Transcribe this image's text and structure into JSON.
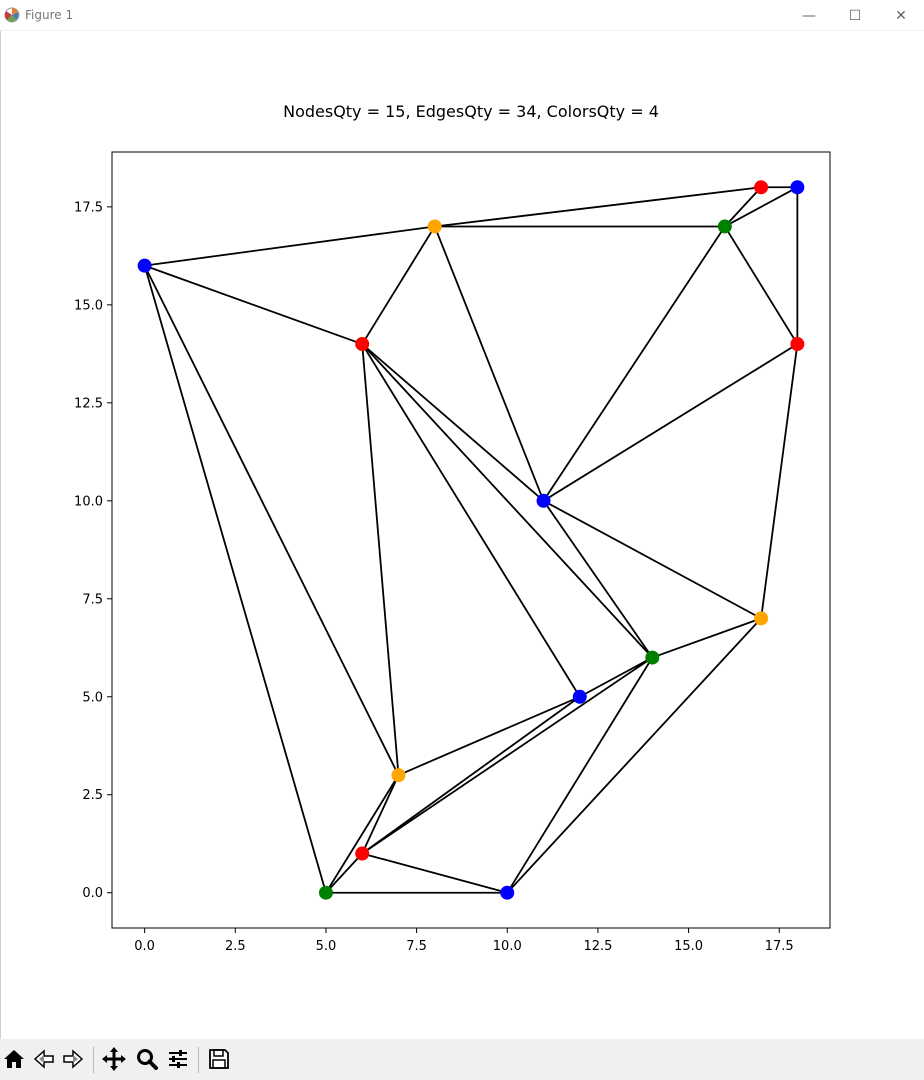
{
  "window": {
    "title": "Figure 1",
    "minimize_glyph": "—",
    "maximize_glyph": "☐",
    "close_glyph": "✕"
  },
  "plot": {
    "title": "NodesQty = 15, EdgesQty = 34, ColorsQty = 4",
    "x_ticks": [
      "0.0",
      "2.5",
      "5.0",
      "7.5",
      "10.0",
      "12.5",
      "15.0",
      "17.5"
    ],
    "y_ticks": [
      "0.0",
      "2.5",
      "5.0",
      "7.5",
      "10.0",
      "12.5",
      "15.0",
      "17.5"
    ]
  },
  "chart_data": {
    "type": "scatter",
    "title": "NodesQty = 15, EdgesQty = 34, ColorsQty = 4",
    "xlim": [
      -0.9,
      18.9
    ],
    "ylim": [
      -0.9,
      18.9
    ],
    "x_tick_values": [
      0,
      2.5,
      5,
      7.5,
      10,
      12.5,
      15,
      17.5
    ],
    "y_tick_values": [
      0,
      2.5,
      5,
      7.5,
      10,
      12.5,
      15,
      17.5
    ],
    "grid": false,
    "edge_color": "#000000",
    "nodes": [
      {
        "x": 17,
        "y": 18,
        "color": "red"
      },
      {
        "x": 18,
        "y": 18,
        "color": "blue"
      },
      {
        "x": 8,
        "y": 17,
        "color": "orange"
      },
      {
        "x": 16,
        "y": 17,
        "color": "green"
      },
      {
        "x": 0,
        "y": 16,
        "color": "blue"
      },
      {
        "x": 6,
        "y": 14,
        "color": "red"
      },
      {
        "x": 18,
        "y": 14,
        "color": "red"
      },
      {
        "x": 11,
        "y": 10,
        "color": "blue"
      },
      {
        "x": 17,
        "y": 7,
        "color": "orange"
      },
      {
        "x": 14,
        "y": 6,
        "color": "green"
      },
      {
        "x": 12,
        "y": 5,
        "color": "blue"
      },
      {
        "x": 7,
        "y": 3,
        "color": "orange"
      },
      {
        "x": 6,
        "y": 1,
        "color": "red"
      },
      {
        "x": 5,
        "y": 0,
        "color": "green"
      },
      {
        "x": 10,
        "y": 0,
        "color": "blue"
      }
    ],
    "edges": [
      [
        0,
        1
      ],
      [
        0,
        3
      ],
      [
        1,
        3
      ],
      [
        1,
        6
      ],
      [
        2,
        3
      ],
      [
        2,
        4
      ],
      [
        2,
        5
      ],
      [
        2,
        7
      ],
      [
        3,
        6
      ],
      [
        3,
        7
      ],
      [
        4,
        5
      ],
      [
        4,
        11
      ],
      [
        4,
        13
      ],
      [
        5,
        7
      ],
      [
        5,
        9
      ],
      [
        5,
        10
      ],
      [
        5,
        11
      ],
      [
        6,
        7
      ],
      [
        6,
        8
      ],
      [
        7,
        8
      ],
      [
        7,
        9
      ],
      [
        8,
        9
      ],
      [
        8,
        14
      ],
      [
        9,
        10
      ],
      [
        9,
        12
      ],
      [
        9,
        14
      ],
      [
        10,
        11
      ],
      [
        10,
        12
      ],
      [
        11,
        12
      ],
      [
        11,
        13
      ],
      [
        12,
        13
      ],
      [
        12,
        14
      ],
      [
        13,
        14
      ],
      [
        0,
        2
      ]
    ]
  },
  "toolbar": {
    "buttons": [
      "home-icon",
      "back-icon",
      "forward-icon",
      "pan-icon",
      "zoom-icon",
      "configure-icon",
      "save-icon"
    ]
  }
}
